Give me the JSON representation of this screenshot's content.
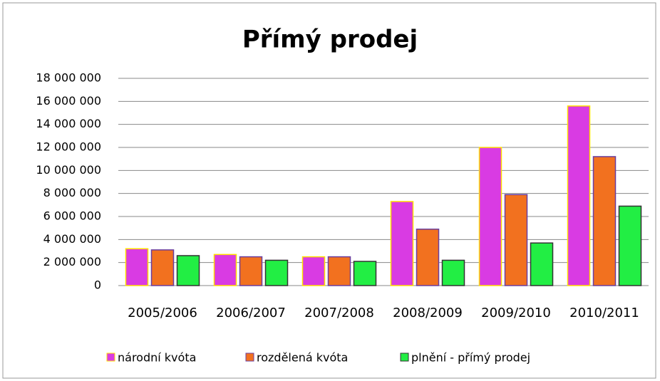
{
  "chart_data": {
    "type": "bar",
    "title": "Přímý prodej",
    "categories": [
      "2005/2006",
      "2006/2007",
      "2007/2008",
      "2008/2009",
      "2009/2010",
      "2010/2011"
    ],
    "series": [
      {
        "name": "národní kvóta",
        "color": "#d93be3",
        "edgecolor": "#ffe000",
        "values": [
          3200000,
          2700000,
          2500000,
          7300000,
          12000000,
          15600000
        ]
      },
      {
        "name": "rozdělená kvóta",
        "color": "#f2711f",
        "edgecolor": "#6a3fa0",
        "values": [
          3100000,
          2500000,
          2500000,
          4900000,
          7900000,
          11200000
        ]
      },
      {
        "name": "plnění - přímý prodej",
        "color": "#22ee44",
        "edgecolor": "#333333",
        "values": [
          2600000,
          2200000,
          2100000,
          2200000,
          3700000,
          6900000
        ]
      }
    ],
    "ylim": [
      0,
      18000000
    ],
    "yticks": [
      0,
      {
        "value": 2000000,
        "label": "2 000 000"
      },
      {
        "value": 4000000,
        "label": "4 000 000"
      },
      {
        "value": 6000000,
        "label": "6 000 000"
      },
      {
        "value": 8000000,
        "label": "8 000 000"
      },
      {
        "value": 10000000,
        "label": "10 000 000"
      },
      {
        "value": 12000000,
        "label": "12 000 000"
      },
      {
        "value": 14000000,
        "label": "14 000 000"
      },
      {
        "value": 16000000,
        "label": "16 000 000"
      },
      {
        "value": 18000000,
        "label": "18 000 000"
      }
    ],
    "grid": true,
    "legend": "bottom"
  }
}
